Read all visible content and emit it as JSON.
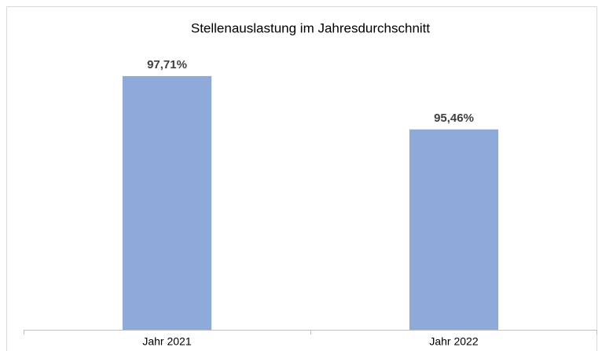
{
  "chart_data": {
    "type": "bar",
    "title": "Stellenauslastung im Jahresdurchschnitt",
    "categories": [
      "Jahr 2021",
      "Jahr 2022"
    ],
    "values": [
      97.71,
      95.46
    ],
    "value_labels": [
      "97,71%",
      "95,46%"
    ],
    "color": "#8eaadb",
    "ylim": [
      87,
      99
    ]
  }
}
